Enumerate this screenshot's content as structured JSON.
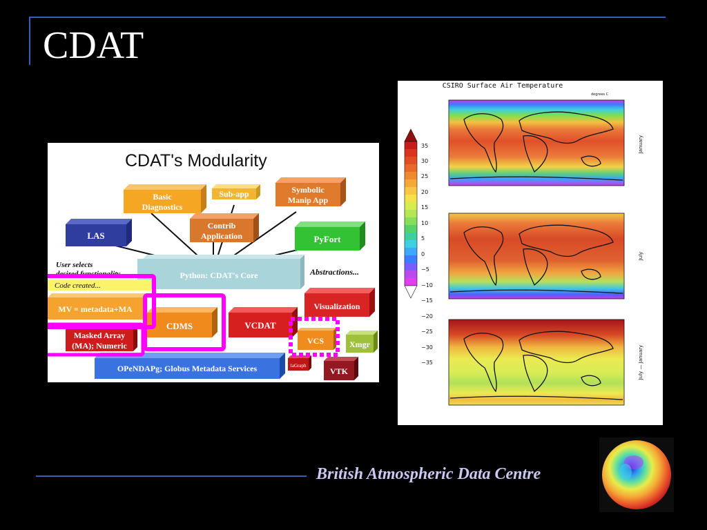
{
  "slide": {
    "title": "CDAT",
    "footer": "British Atmospheric Data Centre",
    "accent_color": "#3a5fb8",
    "footer_color": "#c9c9f2"
  },
  "diagram": {
    "title": "CDAT's Modularity",
    "core": "Python: CDAT's Core",
    "modules": {
      "basic_diag": [
        "Basic",
        "Diagnostics"
      ],
      "subapp": "Sub-app",
      "symbolic": [
        "Symbolic",
        "Manip App"
      ],
      "las": "LAS",
      "contrib": [
        "Contrib",
        "Application"
      ],
      "pyfort": "PyFort",
      "vcdat": "VCDAT",
      "visualization": "Visualization",
      "mv": "MV = metadata+MA",
      "cdms": "CDMS",
      "masked": [
        "Masked Array",
        "(MA); Numeric"
      ],
      "vcs": "VCS",
      "xmgr": "Xmgr",
      "iagraph": "IaGraph",
      "vtk": "VTK",
      "opendap": "OPeNDAPg; Globus Metadata Services"
    },
    "annotations": {
      "user_selects_1": "User selects",
      "user_selects_2": "desired functionality",
      "code_created": "Code created...",
      "abstractions": "Abstractions..."
    },
    "highlight_color": "#ff00ff"
  },
  "map": {
    "title": "CSIRO Surface Air Temperature",
    "unit": "degrees C",
    "colorbar_ticks": [
      "35",
      "30",
      "25",
      "20",
      "15",
      "10",
      "5",
      "0",
      "−5",
      "−10",
      "−15",
      "−20",
      "−25",
      "−30",
      "−35"
    ],
    "panel_labels": [
      "January",
      "July",
      "July — January"
    ]
  }
}
